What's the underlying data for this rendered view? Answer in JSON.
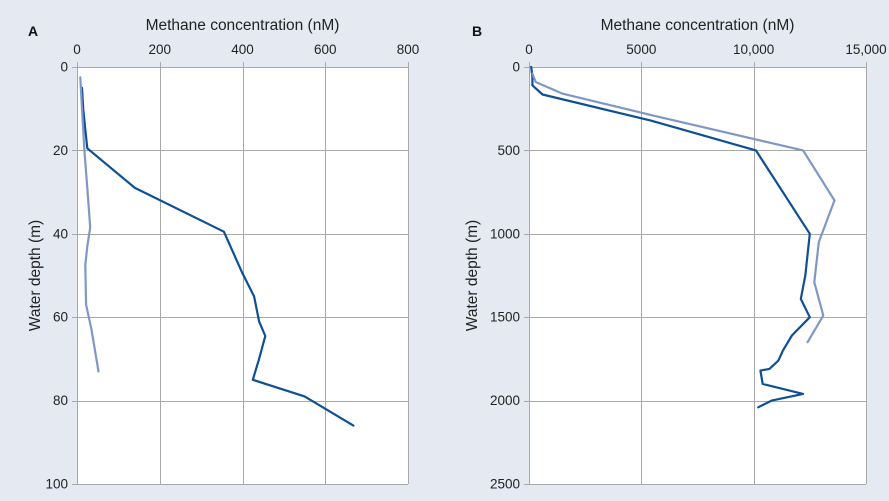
{
  "colors": {
    "background": "#e4e9f2",
    "dark_series": "#0f4f96",
    "light_series": "#8097c5"
  },
  "chart_data": [
    {
      "type": "line",
      "panel_label": "A",
      "title": "",
      "xlabel": "Methane concentration (nM)",
      "ylabel": "Water depth (m)",
      "x_axis_position": "top",
      "y_axis_inverted": true,
      "xlim": [
        0,
        800
      ],
      "ylim": [
        0,
        100
      ],
      "x_ticks": [
        0,
        200,
        400,
        600,
        800
      ],
      "x_tick_labels": [
        "0",
        "200",
        "400",
        "600",
        "800"
      ],
      "y_ticks": [
        0,
        20,
        40,
        60,
        80,
        100
      ],
      "y_tick_labels": [
        "0",
        "20",
        "40",
        "60",
        "80",
        "100"
      ],
      "grid": true,
      "legend": "none",
      "series": [
        {
          "color": "#0f4f96",
          "points": [
            {
              "x": 12,
              "y": 5
            },
            {
              "x": 15,
              "y": 10
            },
            {
              "x": 20,
              "y": 15
            },
            {
              "x": 25,
              "y": 19.5
            },
            {
              "x": 140,
              "y": 29
            },
            {
              "x": 355,
              "y": 39.5
            },
            {
              "x": 400,
              "y": 49.5
            },
            {
              "x": 428,
              "y": 55
            },
            {
              "x": 440,
              "y": 61
            },
            {
              "x": 455,
              "y": 64.5
            },
            {
              "x": 440,
              "y": 70
            },
            {
              "x": 425,
              "y": 75
            },
            {
              "x": 550,
              "y": 79
            },
            {
              "x": 668,
              "y": 86
            }
          ]
        },
        {
          "color": "#8097c5",
          "points": [
            {
              "x": 8,
              "y": 2.5
            },
            {
              "x": 12,
              "y": 10
            },
            {
              "x": 18,
              "y": 20
            },
            {
              "x": 25,
              "y": 29
            },
            {
              "x": 32,
              "y": 38.5
            },
            {
              "x": 25,
              "y": 43
            },
            {
              "x": 20,
              "y": 47.5
            },
            {
              "x": 22,
              "y": 57
            },
            {
              "x": 35,
              "y": 63
            },
            {
              "x": 52,
              "y": 73
            }
          ]
        }
      ]
    },
    {
      "type": "line",
      "panel_label": "B",
      "title": "",
      "xlabel": "Methane concentration (nM)",
      "ylabel": "Water depth (m)",
      "x_axis_position": "top",
      "y_axis_inverted": true,
      "xlim": [
        0,
        15000
      ],
      "ylim": [
        0,
        2500
      ],
      "x_ticks": [
        0,
        5000,
        10000,
        15000
      ],
      "x_tick_labels": [
        "0",
        "5000",
        "10,000",
        "15,000"
      ],
      "y_ticks": [
        0,
        500,
        1000,
        1500,
        2000,
        2500
      ],
      "y_tick_labels": [
        "0",
        "500",
        "1000",
        "1500",
        "2000",
        "2500"
      ],
      "grid": true,
      "legend": "none",
      "series": [
        {
          "color": "#0f4f96",
          "points": [
            {
              "x": 100,
              "y": 0
            },
            {
              "x": 150,
              "y": 60
            },
            {
              "x": 150,
              "y": 110
            },
            {
              "x": 600,
              "y": 165
            },
            {
              "x": 5400,
              "y": 320
            },
            {
              "x": 10100,
              "y": 500
            },
            {
              "x": 12500,
              "y": 1000
            },
            {
              "x": 12300,
              "y": 1250
            },
            {
              "x": 12100,
              "y": 1390
            },
            {
              "x": 12500,
              "y": 1500
            },
            {
              "x": 11700,
              "y": 1610
            },
            {
              "x": 11300,
              "y": 1700
            },
            {
              "x": 11100,
              "y": 1760
            },
            {
              "x": 10700,
              "y": 1810
            },
            {
              "x": 10300,
              "y": 1820
            },
            {
              "x": 10400,
              "y": 1900
            },
            {
              "x": 12200,
              "y": 1960
            },
            {
              "x": 10800,
              "y": 2000
            },
            {
              "x": 10200,
              "y": 2040
            }
          ]
        },
        {
          "color": "#8097c5",
          "points": [
            {
              "x": 150,
              "y": 40
            },
            {
              "x": 300,
              "y": 90
            },
            {
              "x": 1500,
              "y": 160
            },
            {
              "x": 5500,
              "y": 290
            },
            {
              "x": 12200,
              "y": 500
            },
            {
              "x": 13600,
              "y": 800
            },
            {
              "x": 12900,
              "y": 1050
            },
            {
              "x": 12700,
              "y": 1290
            },
            {
              "x": 13100,
              "y": 1490
            },
            {
              "x": 12400,
              "y": 1650
            }
          ]
        }
      ]
    }
  ]
}
